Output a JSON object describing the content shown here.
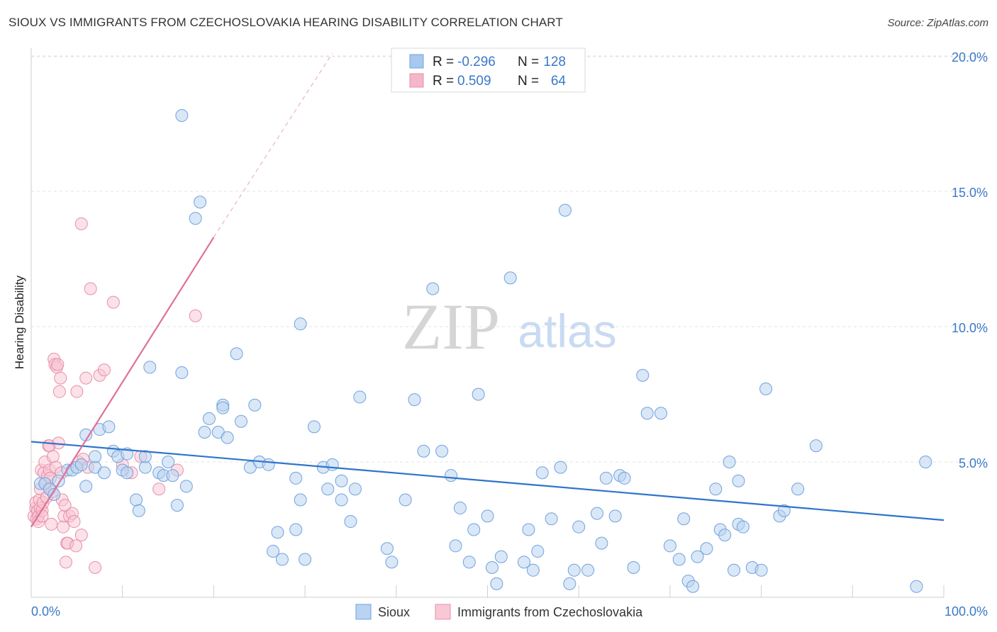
{
  "title": "SIOUX VS IMMIGRANTS FROM CZECHOSLOVAKIA HEARING DISABILITY CORRELATION CHART",
  "source": "Source: ZipAtlas.com",
  "watermark": {
    "zip": "ZIP",
    "atlas": "atlas"
  },
  "legend_box": {
    "rows": [
      {
        "r_label": "R =",
        "r_value": "-0.296",
        "n_label": "N =",
        "n_value": "128",
        "color": "#a8c8ee"
      },
      {
        "r_label": "R =",
        "r_value": " 0.509",
        "n_label": "N =",
        "n_value": "64",
        "color": "#f5b6c8"
      }
    ]
  },
  "colors": {
    "blue": "#6fa3dd",
    "blue_fill": "#b9d3f1",
    "blue_line": "#2f74cc",
    "pink": "#e98fa9",
    "pink_fill": "#f8c8d5",
    "pink_line": "#e07097",
    "accent_text": "#3b78c8"
  },
  "chart_data": {
    "type": "scatter",
    "title": "SIOUX VS IMMIGRANTS FROM CZECHOSLOVAKIA HEARING DISABILITY CORRELATION CHART",
    "xlabel": "",
    "ylabel": "Hearing Disability",
    "xlim": [
      0,
      100
    ],
    "ylim": [
      0,
      20.5
    ],
    "x_tick_labels": [
      "0.0%",
      "100.0%"
    ],
    "y_ticks": [
      5,
      10,
      15,
      20
    ],
    "y_tick_labels": [
      "5.0%",
      "10.0%",
      "15.0%",
      "20.0%"
    ],
    "grid": true,
    "legend_position": "bottom",
    "series": [
      {
        "name": "Sioux",
        "r": -0.296,
        "n": 128,
        "trend": {
          "x0": 0,
          "y0": 5.75,
          "x1": 100,
          "y1": 2.85
        },
        "points": [
          [
            1,
            4.2
          ],
          [
            1.5,
            4.2
          ],
          [
            2,
            4.0
          ],
          [
            2.5,
            3.8
          ],
          [
            3,
            4.3
          ],
          [
            4,
            4.7
          ],
          [
            4.5,
            4.7
          ],
          [
            5,
            4.8
          ],
          [
            5.5,
            4.9
          ],
          [
            6,
            4.1
          ],
          [
            6,
            6.0
          ],
          [
            7,
            4.8
          ],
          [
            7,
            5.2
          ],
          [
            7.5,
            6.2
          ],
          [
            8,
            4.6
          ],
          [
            8.5,
            6.3
          ],
          [
            9,
            5.4
          ],
          [
            9.5,
            5.2
          ],
          [
            10,
            4.7
          ],
          [
            10.5,
            5.3
          ],
          [
            10.5,
            4.6
          ],
          [
            11.5,
            3.6
          ],
          [
            11.8,
            3.2
          ],
          [
            12.5,
            4.8
          ],
          [
            12.5,
            5.2
          ],
          [
            13,
            8.5
          ],
          [
            14,
            4.6
          ],
          [
            14.5,
            4.5
          ],
          [
            15,
            5.0
          ],
          [
            15.5,
            4.5
          ],
          [
            16,
            3.4
          ],
          [
            16.5,
            17.8
          ],
          [
            16.5,
            8.3
          ],
          [
            17,
            4.1
          ],
          [
            18,
            14.0
          ],
          [
            18.5,
            14.6
          ],
          [
            19,
            6.1
          ],
          [
            19.5,
            6.6
          ],
          [
            20.5,
            6.1
          ],
          [
            21,
            7.1
          ],
          [
            21,
            7.0
          ],
          [
            21.5,
            5.9
          ],
          [
            22.5,
            9.0
          ],
          [
            23,
            6.5
          ],
          [
            24,
            4.8
          ],
          [
            24.5,
            7.1
          ],
          [
            25,
            5.0
          ],
          [
            26,
            4.9
          ],
          [
            26.5,
            1.7
          ],
          [
            27,
            2.4
          ],
          [
            27.5,
            1.4
          ],
          [
            29,
            2.5
          ],
          [
            29,
            4.4
          ],
          [
            29.5,
            3.6
          ],
          [
            29.5,
            10.1
          ],
          [
            30,
            1.4
          ],
          [
            31,
            6.3
          ],
          [
            32,
            4.8
          ],
          [
            32.5,
            4.0
          ],
          [
            33,
            4.9
          ],
          [
            34,
            4.3
          ],
          [
            35,
            2.8
          ],
          [
            34,
            3.6
          ],
          [
            35.5,
            4.0
          ],
          [
            36,
            7.4
          ],
          [
            39,
            1.8
          ],
          [
            39.5,
            1.3
          ],
          [
            41,
            3.6
          ],
          [
            42,
            7.3
          ],
          [
            43,
            5.4
          ],
          [
            44,
            11.4
          ],
          [
            45,
            5.4
          ],
          [
            46,
            4.5
          ],
          [
            46.5,
            1.9
          ],
          [
            47,
            3.3
          ],
          [
            48,
            1.3
          ],
          [
            48.5,
            2.5
          ],
          [
            49,
            7.5
          ],
          [
            50,
            3.0
          ],
          [
            50.5,
            1.1
          ],
          [
            51,
            0.5
          ],
          [
            51.5,
            1.5
          ],
          [
            52.5,
            11.8
          ],
          [
            54,
            1.3
          ],
          [
            54.5,
            2.5
          ],
          [
            55,
            1.0
          ],
          [
            55.5,
            1.7
          ],
          [
            56,
            4.6
          ],
          [
            57,
            2.9
          ],
          [
            58,
            4.8
          ],
          [
            58.5,
            14.3
          ],
          [
            59,
            0.5
          ],
          [
            59.5,
            1.0
          ],
          [
            60,
            2.6
          ],
          [
            61,
            1.0
          ],
          [
            62,
            3.1
          ],
          [
            62.5,
            2.0
          ],
          [
            63,
            4.4
          ],
          [
            64,
            3.0
          ],
          [
            64.5,
            4.5
          ],
          [
            65,
            4.4
          ],
          [
            66,
            1.1
          ],
          [
            67,
            8.2
          ],
          [
            67.5,
            6.8
          ],
          [
            69,
            6.8
          ],
          [
            70,
            1.9
          ],
          [
            71,
            1.4
          ],
          [
            71.5,
            2.9
          ],
          [
            72,
            0.6
          ],
          [
            72.5,
            0.4
          ],
          [
            73,
            1.5
          ],
          [
            74,
            1.8
          ],
          [
            75,
            4.0
          ],
          [
            75.5,
            2.5
          ],
          [
            76,
            2.3
          ],
          [
            76.5,
            5.0
          ],
          [
            77,
            1.0
          ],
          [
            77.5,
            2.7
          ],
          [
            77.5,
            4.3
          ],
          [
            78,
            2.6
          ],
          [
            79,
            1.1
          ],
          [
            80,
            1.0
          ],
          [
            80.5,
            7.7
          ],
          [
            82,
            3.0
          ],
          [
            82.5,
            3.2
          ],
          [
            84,
            4.0
          ],
          [
            86,
            5.6
          ],
          [
            97,
            0.4
          ],
          [
            98,
            5.0
          ]
        ]
      },
      {
        "name": "Immigrants from Czechoslovakia",
        "r": 0.509,
        "n": 64,
        "trend": {
          "x0": 0,
          "y0": 2.6,
          "x1": 20,
          "y1": 13.3,
          "dashed_to_x": 33,
          "dashed_to_y": 20.1
        },
        "points": [
          [
            0.3,
            3.0
          ],
          [
            0.5,
            3.3
          ],
          [
            0.5,
            3.5
          ],
          [
            0.6,
            2.9
          ],
          [
            0.7,
            3.2
          ],
          [
            0.8,
            3.0
          ],
          [
            0.8,
            2.8
          ],
          [
            0.9,
            3.6
          ],
          [
            1,
            4.0
          ],
          [
            1,
            3.3
          ],
          [
            1.1,
            4.7
          ],
          [
            1.2,
            3.2
          ],
          [
            1.3,
            3.5
          ],
          [
            1.4,
            4.6
          ],
          [
            1.5,
            5.0
          ],
          [
            1.6,
            4.2
          ],
          [
            1.7,
            3.7
          ],
          [
            1.8,
            4.5
          ],
          [
            1.9,
            5.6
          ],
          [
            2,
            5.6
          ],
          [
            2,
            4.7
          ],
          [
            2.1,
            4.4
          ],
          [
            2.2,
            2.7
          ],
          [
            2.3,
            3.9
          ],
          [
            2.4,
            5.2
          ],
          [
            2.5,
            8.8
          ],
          [
            2.6,
            8.6
          ],
          [
            2.7,
            4.8
          ],
          [
            2.8,
            8.5
          ],
          [
            2.9,
            8.6
          ],
          [
            3,
            5.7
          ],
          [
            3.1,
            7.6
          ],
          [
            3.2,
            8.1
          ],
          [
            3.3,
            4.6
          ],
          [
            3.4,
            3.6
          ],
          [
            3.5,
            2.6
          ],
          [
            3.6,
            3.0
          ],
          [
            3.7,
            3.4
          ],
          [
            3.8,
            1.3
          ],
          [
            3.9,
            2.0
          ],
          [
            4,
            2.0
          ],
          [
            4.2,
            3.0
          ],
          [
            4.5,
            3.1
          ],
          [
            4.7,
            2.8
          ],
          [
            4.9,
            1.9
          ],
          [
            5,
            7.6
          ],
          [
            5.2,
            5.0
          ],
          [
            5.5,
            2.3
          ],
          [
            5.5,
            13.8
          ],
          [
            5.7,
            5.1
          ],
          [
            6,
            8.1
          ],
          [
            6.2,
            4.8
          ],
          [
            6.5,
            11.4
          ],
          [
            7,
            1.1
          ],
          [
            7.5,
            8.2
          ],
          [
            8,
            8.4
          ],
          [
            9,
            10.9
          ],
          [
            10,
            4.9
          ],
          [
            11,
            4.6
          ],
          [
            12,
            5.2
          ],
          [
            14,
            4.0
          ],
          [
            16,
            4.7
          ],
          [
            18,
            10.4
          ],
          [
            1.2,
            3.0
          ]
        ]
      }
    ]
  }
}
